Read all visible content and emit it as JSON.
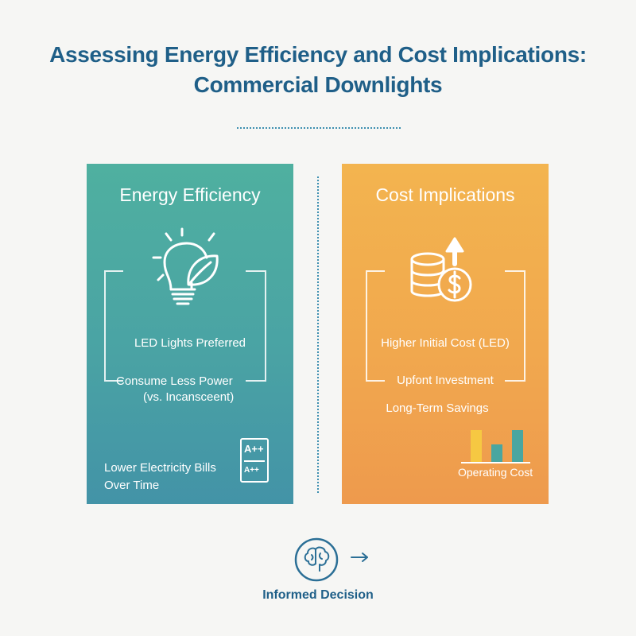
{
  "title": {
    "line1": "Assessing Energy Efficiency and Cost Implications:",
    "line2": "Commercial Downlights"
  },
  "energy_panel": {
    "heading": "Energy Efficiency",
    "icon": "lightbulb-leaf-icon",
    "item1": "LED Lights Preferred",
    "item2_line1": "Consume Less Power",
    "item2_line2": "(vs. Incansceent)",
    "item3_line1": "Lower Electricity Bills",
    "item3_line2": "Over Time",
    "rating_top": "A++",
    "rating_bottom": "A++",
    "color_top": "#4fb0a0",
    "color_bottom": "#4393a7"
  },
  "cost_panel": {
    "heading": "Cost Implications",
    "icon": "coins-dollar-arrow-icon",
    "item1": "Higher Initial Cost (LED)",
    "item2": "Upfont Investment",
    "item3": "Long-Term Savings",
    "chart_label": "Operating Cost",
    "color_top": "#f3b44f",
    "color_bottom": "#ee9a4d"
  },
  "footer": {
    "icon": "brain-icon",
    "label": "Informed Decision"
  }
}
